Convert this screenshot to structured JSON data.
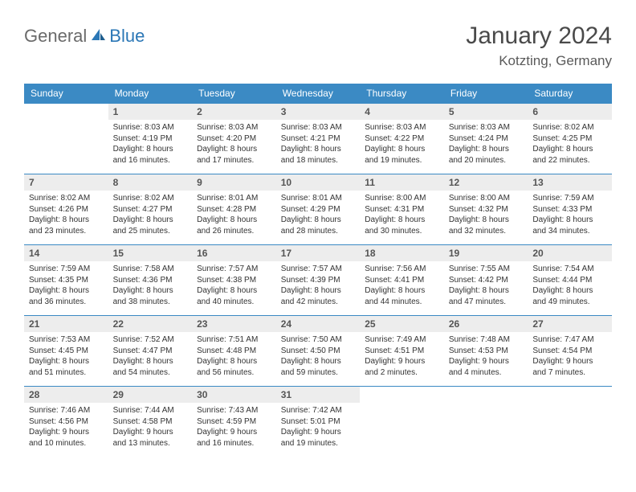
{
  "brand": {
    "name_gray": "General",
    "name_blue": "Blue"
  },
  "title": "January 2024",
  "location": "Kotzting, Germany",
  "colors": {
    "header_bg": "#3b8ac4",
    "daynum_bg": "#ededed",
    "border": "#3b8ac4",
    "text": "#333333"
  },
  "dow": [
    "Sunday",
    "Monday",
    "Tuesday",
    "Wednesday",
    "Thursday",
    "Friday",
    "Saturday"
  ],
  "days": [
    {
      "n": "1",
      "sr": "8:03 AM",
      "ss": "4:19 PM",
      "dl": "8 hours and 16 minutes."
    },
    {
      "n": "2",
      "sr": "8:03 AM",
      "ss": "4:20 PM",
      "dl": "8 hours and 17 minutes."
    },
    {
      "n": "3",
      "sr": "8:03 AM",
      "ss": "4:21 PM",
      "dl": "8 hours and 18 minutes."
    },
    {
      "n": "4",
      "sr": "8:03 AM",
      "ss": "4:22 PM",
      "dl": "8 hours and 19 minutes."
    },
    {
      "n": "5",
      "sr": "8:03 AM",
      "ss": "4:24 PM",
      "dl": "8 hours and 20 minutes."
    },
    {
      "n": "6",
      "sr": "8:02 AM",
      "ss": "4:25 PM",
      "dl": "8 hours and 22 minutes."
    },
    {
      "n": "7",
      "sr": "8:02 AM",
      "ss": "4:26 PM",
      "dl": "8 hours and 23 minutes."
    },
    {
      "n": "8",
      "sr": "8:02 AM",
      "ss": "4:27 PM",
      "dl": "8 hours and 25 minutes."
    },
    {
      "n": "9",
      "sr": "8:01 AM",
      "ss": "4:28 PM",
      "dl": "8 hours and 26 minutes."
    },
    {
      "n": "10",
      "sr": "8:01 AM",
      "ss": "4:29 PM",
      "dl": "8 hours and 28 minutes."
    },
    {
      "n": "11",
      "sr": "8:00 AM",
      "ss": "4:31 PM",
      "dl": "8 hours and 30 minutes."
    },
    {
      "n": "12",
      "sr": "8:00 AM",
      "ss": "4:32 PM",
      "dl": "8 hours and 32 minutes."
    },
    {
      "n": "13",
      "sr": "7:59 AM",
      "ss": "4:33 PM",
      "dl": "8 hours and 34 minutes."
    },
    {
      "n": "14",
      "sr": "7:59 AM",
      "ss": "4:35 PM",
      "dl": "8 hours and 36 minutes."
    },
    {
      "n": "15",
      "sr": "7:58 AM",
      "ss": "4:36 PM",
      "dl": "8 hours and 38 minutes."
    },
    {
      "n": "16",
      "sr": "7:57 AM",
      "ss": "4:38 PM",
      "dl": "8 hours and 40 minutes."
    },
    {
      "n": "17",
      "sr": "7:57 AM",
      "ss": "4:39 PM",
      "dl": "8 hours and 42 minutes."
    },
    {
      "n": "18",
      "sr": "7:56 AM",
      "ss": "4:41 PM",
      "dl": "8 hours and 44 minutes."
    },
    {
      "n": "19",
      "sr": "7:55 AM",
      "ss": "4:42 PM",
      "dl": "8 hours and 47 minutes."
    },
    {
      "n": "20",
      "sr": "7:54 AM",
      "ss": "4:44 PM",
      "dl": "8 hours and 49 minutes."
    },
    {
      "n": "21",
      "sr": "7:53 AM",
      "ss": "4:45 PM",
      "dl": "8 hours and 51 minutes."
    },
    {
      "n": "22",
      "sr": "7:52 AM",
      "ss": "4:47 PM",
      "dl": "8 hours and 54 minutes."
    },
    {
      "n": "23",
      "sr": "7:51 AM",
      "ss": "4:48 PM",
      "dl": "8 hours and 56 minutes."
    },
    {
      "n": "24",
      "sr": "7:50 AM",
      "ss": "4:50 PM",
      "dl": "8 hours and 59 minutes."
    },
    {
      "n": "25",
      "sr": "7:49 AM",
      "ss": "4:51 PM",
      "dl": "9 hours and 2 minutes."
    },
    {
      "n": "26",
      "sr": "7:48 AM",
      "ss": "4:53 PM",
      "dl": "9 hours and 4 minutes."
    },
    {
      "n": "27",
      "sr": "7:47 AM",
      "ss": "4:54 PM",
      "dl": "9 hours and 7 minutes."
    },
    {
      "n": "28",
      "sr": "7:46 AM",
      "ss": "4:56 PM",
      "dl": "9 hours and 10 minutes."
    },
    {
      "n": "29",
      "sr": "7:44 AM",
      "ss": "4:58 PM",
      "dl": "9 hours and 13 minutes."
    },
    {
      "n": "30",
      "sr": "7:43 AM",
      "ss": "4:59 PM",
      "dl": "9 hours and 16 minutes."
    },
    {
      "n": "31",
      "sr": "7:42 AM",
      "ss": "5:01 PM",
      "dl": "9 hours and 19 minutes."
    }
  ],
  "labels": {
    "sunrise": "Sunrise:",
    "sunset": "Sunset:",
    "daylight": "Daylight:"
  },
  "first_dow_offset": 1
}
